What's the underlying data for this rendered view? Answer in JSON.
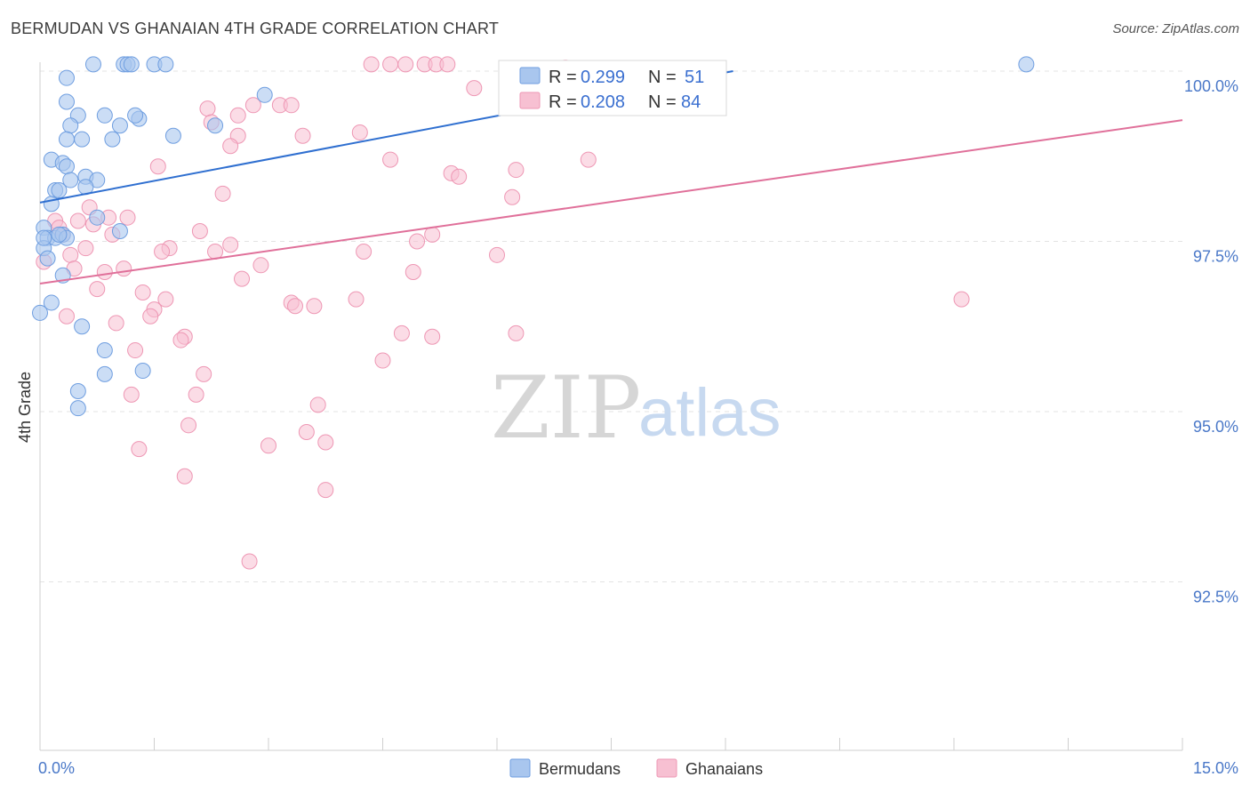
{
  "title": "BERMUDAN VS GHANAIAN 4TH GRADE CORRELATION CHART",
  "source": "Source: ZipAtlas.com",
  "watermark": {
    "zip": "ZIP",
    "atlas": "atlas"
  },
  "colors": {
    "blue_fill": "#a9c6ee",
    "blue_stroke": "#6f9ee0",
    "blue_line": "#2f6fd0",
    "pink_fill": "#f7c0d2",
    "pink_stroke": "#ee97b4",
    "pink_line": "#e0709a",
    "tick_text": "#4a78c8",
    "grid": "#e3e3e3"
  },
  "legend": {
    "r_label": "R =",
    "n_label": "N =",
    "blue": {
      "r": "0.299",
      "n": "51"
    },
    "pink": {
      "r": "0.208",
      "n": "84"
    }
  },
  "bottom_legend": {
    "blue": "Bermudans",
    "pink": "Ghanaians"
  },
  "chart_data": {
    "type": "scatter",
    "title": "BERMUDAN VS GHANAIAN 4TH GRADE CORRELATION CHART",
    "xlabel": "",
    "ylabel": "4th Grade",
    "xlim": [
      0.0,
      15.0
    ],
    "ylim": [
      90.1,
      100.4
    ],
    "x_tick_labels": [
      {
        "value": 0.0,
        "label": "0.0%"
      },
      {
        "value": 15.0,
        "label": "15.0%"
      }
    ],
    "y_tick_labels": [
      {
        "value": 100.0,
        "label": "100.0%"
      },
      {
        "value": 97.5,
        "label": "97.5%"
      },
      {
        "value": 95.0,
        "label": "95.0%"
      },
      {
        "value": 92.5,
        "label": "92.5%"
      }
    ],
    "series": [
      {
        "name": "Bermudans",
        "color": "#a9c6ee",
        "r": 0.299,
        "n": 51,
        "trend": {
          "x": [
            0.0,
            9.1
          ],
          "y": [
            98.07,
            100.0
          ]
        },
        "points": [
          {
            "x": 0.35,
            "y": 99.9
          },
          {
            "x": 0.7,
            "y": 100.1
          },
          {
            "x": 1.1,
            "y": 100.1
          },
          {
            "x": 1.15,
            "y": 100.1
          },
          {
            "x": 1.2,
            "y": 100.1
          },
          {
            "x": 1.5,
            "y": 100.1
          },
          {
            "x": 1.65,
            "y": 100.1
          },
          {
            "x": 12.95,
            "y": 100.1
          },
          {
            "x": 0.35,
            "y": 99.55
          },
          {
            "x": 0.5,
            "y": 99.35
          },
          {
            "x": 0.85,
            "y": 99.35
          },
          {
            "x": 1.3,
            "y": 99.3
          },
          {
            "x": 1.25,
            "y": 99.35
          },
          {
            "x": 2.95,
            "y": 99.65
          },
          {
            "x": 0.4,
            "y": 99.2
          },
          {
            "x": 0.35,
            "y": 99.0
          },
          {
            "x": 0.55,
            "y": 99.0
          },
          {
            "x": 1.05,
            "y": 99.2
          },
          {
            "x": 0.95,
            "y": 99.0
          },
          {
            "x": 1.75,
            "y": 99.05
          },
          {
            "x": 2.3,
            "y": 99.2
          },
          {
            "x": 0.15,
            "y": 98.7
          },
          {
            "x": 0.3,
            "y": 98.65
          },
          {
            "x": 0.35,
            "y": 98.6
          },
          {
            "x": 0.4,
            "y": 98.4
          },
          {
            "x": 0.6,
            "y": 98.45
          },
          {
            "x": 0.75,
            "y": 98.4
          },
          {
            "x": 0.6,
            "y": 98.3
          },
          {
            "x": 0.2,
            "y": 98.25
          },
          {
            "x": 0.25,
            "y": 98.25
          },
          {
            "x": 0.15,
            "y": 98.05
          },
          {
            "x": 0.05,
            "y": 97.7
          },
          {
            "x": 0.1,
            "y": 97.55
          },
          {
            "x": 0.2,
            "y": 97.55
          },
          {
            "x": 0.3,
            "y": 97.6
          },
          {
            "x": 0.35,
            "y": 97.55
          },
          {
            "x": 0.75,
            "y": 97.85
          },
          {
            "x": 1.05,
            "y": 97.65
          },
          {
            "x": 0.05,
            "y": 97.4
          },
          {
            "x": 0.1,
            "y": 97.25
          },
          {
            "x": 0.3,
            "y": 97.0
          },
          {
            "x": 0.15,
            "y": 96.6
          },
          {
            "x": 0.0,
            "y": 96.45
          },
          {
            "x": 0.55,
            "y": 96.25
          },
          {
            "x": 0.85,
            "y": 95.9
          },
          {
            "x": 0.85,
            "y": 95.55
          },
          {
            "x": 1.35,
            "y": 95.6
          },
          {
            "x": 0.5,
            "y": 95.3
          },
          {
            "x": 0.5,
            "y": 95.05
          },
          {
            "x": 0.05,
            "y": 97.55
          },
          {
            "x": 0.25,
            "y": 97.6
          }
        ]
      },
      {
        "name": "Ghanaians",
        "color": "#f7c0d2",
        "r": 0.208,
        "n": 84,
        "trend": {
          "x": [
            0.0,
            15.0
          ],
          "y": [
            96.88,
            99.28
          ]
        },
        "points": [
          {
            "x": 4.35,
            "y": 100.1
          },
          {
            "x": 4.6,
            "y": 100.1
          },
          {
            "x": 4.8,
            "y": 100.1
          },
          {
            "x": 5.05,
            "y": 100.1
          },
          {
            "x": 5.2,
            "y": 100.1
          },
          {
            "x": 5.35,
            "y": 100.1
          },
          {
            "x": 6.9,
            "y": 100.05
          },
          {
            "x": 5.7,
            "y": 99.75
          },
          {
            "x": 2.8,
            "y": 99.5
          },
          {
            "x": 3.15,
            "y": 99.5
          },
          {
            "x": 3.3,
            "y": 99.5
          },
          {
            "x": 2.2,
            "y": 99.45
          },
          {
            "x": 2.25,
            "y": 99.25
          },
          {
            "x": 2.6,
            "y": 99.35
          },
          {
            "x": 2.6,
            "y": 99.05
          },
          {
            "x": 3.45,
            "y": 99.05
          },
          {
            "x": 4.2,
            "y": 99.1
          },
          {
            "x": 2.5,
            "y": 98.9
          },
          {
            "x": 4.6,
            "y": 98.7
          },
          {
            "x": 7.2,
            "y": 98.7
          },
          {
            "x": 1.55,
            "y": 98.6
          },
          {
            "x": 6.25,
            "y": 98.55
          },
          {
            "x": 5.4,
            "y": 98.5
          },
          {
            "x": 5.5,
            "y": 98.45
          },
          {
            "x": 2.4,
            "y": 98.2
          },
          {
            "x": 6.2,
            "y": 98.15
          },
          {
            "x": 0.2,
            "y": 97.8
          },
          {
            "x": 0.5,
            "y": 97.8
          },
          {
            "x": 0.7,
            "y": 97.75
          },
          {
            "x": 0.65,
            "y": 98.0
          },
          {
            "x": 0.9,
            "y": 97.85
          },
          {
            "x": 1.15,
            "y": 97.85
          },
          {
            "x": 0.25,
            "y": 97.7
          },
          {
            "x": 0.3,
            "y": 97.6
          },
          {
            "x": 0.95,
            "y": 97.6
          },
          {
            "x": 2.1,
            "y": 97.65
          },
          {
            "x": 5.15,
            "y": 97.6
          },
          {
            "x": 4.95,
            "y": 97.5
          },
          {
            "x": 1.7,
            "y": 97.4
          },
          {
            "x": 1.6,
            "y": 97.35
          },
          {
            "x": 2.5,
            "y": 97.45
          },
          {
            "x": 2.3,
            "y": 97.35
          },
          {
            "x": 4.25,
            "y": 97.35
          },
          {
            "x": 0.6,
            "y": 97.4
          },
          {
            "x": 0.4,
            "y": 97.3
          },
          {
            "x": 0.05,
            "y": 97.2
          },
          {
            "x": 0.45,
            "y": 97.1
          },
          {
            "x": 0.85,
            "y": 97.05
          },
          {
            "x": 1.1,
            "y": 97.1
          },
          {
            "x": 2.9,
            "y": 97.15
          },
          {
            "x": 4.9,
            "y": 97.05
          },
          {
            "x": 6.0,
            "y": 97.3
          },
          {
            "x": 2.65,
            "y": 96.95
          },
          {
            "x": 0.75,
            "y": 96.8
          },
          {
            "x": 1.35,
            "y": 96.75
          },
          {
            "x": 1.65,
            "y": 96.65
          },
          {
            "x": 3.3,
            "y": 96.6
          },
          {
            "x": 3.35,
            "y": 96.55
          },
          {
            "x": 3.6,
            "y": 96.55
          },
          {
            "x": 4.15,
            "y": 96.65
          },
          {
            "x": 12.1,
            "y": 96.65
          },
          {
            "x": 1.5,
            "y": 96.5
          },
          {
            "x": 1.45,
            "y": 96.4
          },
          {
            "x": 0.35,
            "y": 96.4
          },
          {
            "x": 1.0,
            "y": 96.3
          },
          {
            "x": 1.9,
            "y": 96.1
          },
          {
            "x": 1.85,
            "y": 96.05
          },
          {
            "x": 4.75,
            "y": 96.15
          },
          {
            "x": 5.15,
            "y": 96.1
          },
          {
            "x": 6.25,
            "y": 96.15
          },
          {
            "x": 1.25,
            "y": 95.9
          },
          {
            "x": 4.5,
            "y": 95.75
          },
          {
            "x": 2.15,
            "y": 95.55
          },
          {
            "x": 2.05,
            "y": 95.25
          },
          {
            "x": 1.2,
            "y": 95.25
          },
          {
            "x": 3.65,
            "y": 95.1
          },
          {
            "x": 1.95,
            "y": 94.8
          },
          {
            "x": 3.5,
            "y": 94.7
          },
          {
            "x": 3.75,
            "y": 94.55
          },
          {
            "x": 1.3,
            "y": 94.45
          },
          {
            "x": 3.0,
            "y": 94.5
          },
          {
            "x": 1.9,
            "y": 94.05
          },
          {
            "x": 3.75,
            "y": 93.85
          },
          {
            "x": 2.75,
            "y": 92.8
          }
        ]
      }
    ]
  }
}
